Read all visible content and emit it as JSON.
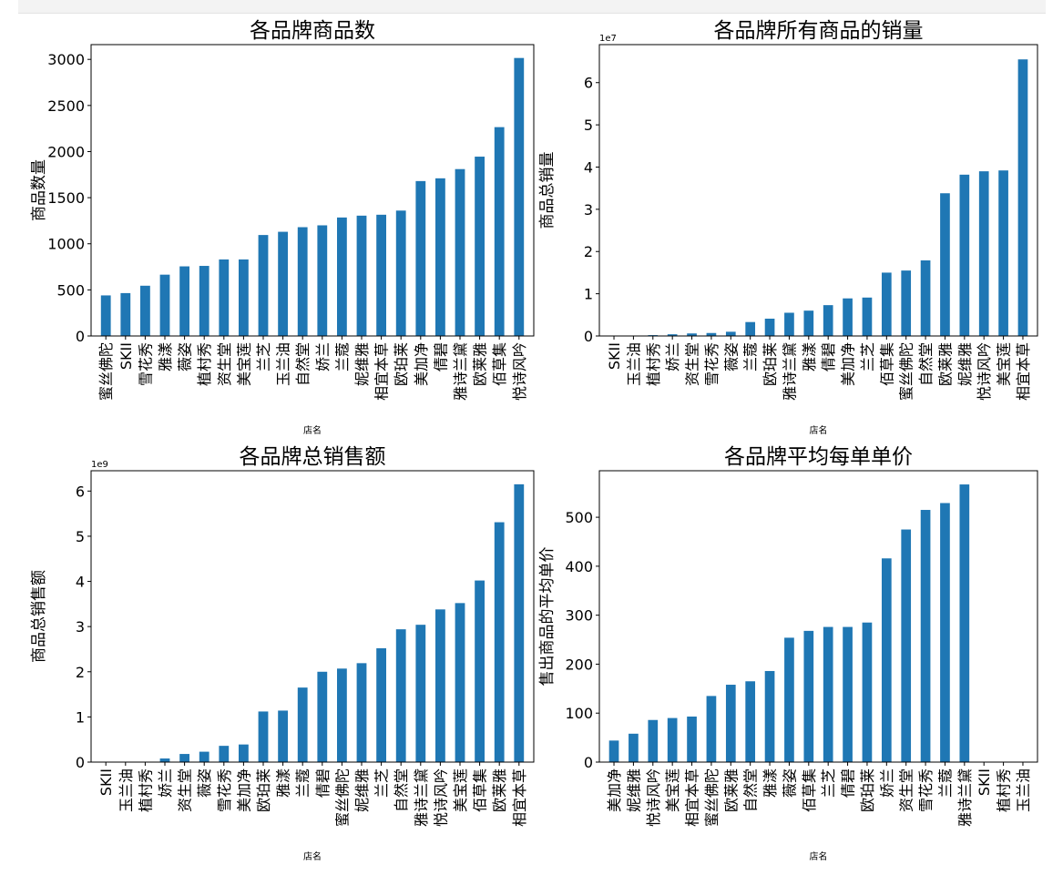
{
  "chart_data": [
    {
      "type": "bar",
      "title": "各品牌商品数",
      "xlabel": "店名",
      "ylabel": "商品数量",
      "exponent": "",
      "color": "#1f77b4",
      "ylim": [
        0,
        3160
      ],
      "yticks": [
        0,
        500,
        1000,
        1500,
        2000,
        2500,
        3000
      ],
      "categories": [
        "蜜丝佛陀",
        "SKII",
        "雪花秀",
        "雅漾",
        "薇姿",
        "植村秀",
        "资生堂",
        "美宝莲",
        "兰芝",
        "玉兰油",
        "自然堂",
        "娇兰",
        "兰蔻",
        "妮维雅",
        "相宜本草",
        "欧珀莱",
        "美加净",
        "倩碧",
        "雅诗兰黛",
        "欧莱雅",
        "佰草集",
        "悦诗风吟"
      ],
      "values": [
        440,
        465,
        545,
        665,
        755,
        760,
        830,
        830,
        1095,
        1130,
        1180,
        1200,
        1285,
        1305,
        1315,
        1360,
        1680,
        1710,
        1810,
        1945,
        2265,
        3015
      ]
    },
    {
      "type": "bar",
      "title": "各品牌所有商品的销量",
      "xlabel": "店名",
      "ylabel": "商品总销量",
      "exponent": "1e7",
      "color": "#1f77b4",
      "ylim": [
        0,
        6.9
      ],
      "yticks": [
        0,
        1,
        2,
        3,
        4,
        5,
        6
      ],
      "categories": [
        "SKII",
        "玉兰油",
        "植村秀",
        "娇兰",
        "资生堂",
        "雪花秀",
        "薇姿",
        "兰蔻",
        "欧珀莱",
        "雅诗兰黛",
        "雅漾",
        "倩碧",
        "美加净",
        "兰芝",
        "佰草集",
        "蜜丝佛陀",
        "自然堂",
        "欧莱雅",
        "妮维雅",
        "悦诗风吟",
        "美宝莲",
        "相宜本草"
      ],
      "values": [
        0.01,
        0.01,
        0.02,
        0.04,
        0.06,
        0.07,
        0.1,
        0.33,
        0.41,
        0.55,
        0.6,
        0.73,
        0.89,
        0.91,
        1.5,
        1.55,
        1.79,
        3.38,
        3.82,
        3.9,
        3.92,
        6.55
      ]
    },
    {
      "type": "bar",
      "title": "各品牌总销售额",
      "xlabel": "店名",
      "ylabel": "商品总销售额",
      "exponent": "1e9",
      "color": "#1f77b4",
      "ylim": [
        0,
        6.45
      ],
      "yticks": [
        0,
        1,
        2,
        3,
        4,
        5,
        6
      ],
      "categories": [
        "SKII",
        "玉兰油",
        "植村秀",
        "娇兰",
        "资生堂",
        "薇姿",
        "雪花秀",
        "美加净",
        "欧珀莱",
        "雅漾",
        "兰蔻",
        "倩碧",
        "蜜丝佛陀",
        "妮维雅",
        "兰芝",
        "自然堂",
        "雅诗兰黛",
        "悦诗风吟",
        "美宝莲",
        "佰草集",
        "欧莱雅",
        "相宜本草"
      ],
      "values": [
        0.0,
        0.0,
        0.01,
        0.08,
        0.18,
        0.23,
        0.36,
        0.39,
        1.12,
        1.14,
        1.65,
        2.0,
        2.07,
        2.19,
        2.52,
        2.94,
        3.04,
        3.38,
        3.52,
        4.02,
        5.31,
        6.15
      ]
    },
    {
      "type": "bar",
      "title": "各品牌平均每单单价",
      "xlabel": "店名",
      "ylabel": "售出商品的平均单价",
      "exponent": "",
      "color": "#1f77b4",
      "ylim": [
        0,
        595
      ],
      "yticks": [
        0,
        100,
        200,
        300,
        400,
        500
      ],
      "categories": [
        "美加净",
        "妮维雅",
        "悦诗风吟",
        "美宝莲",
        "相宜本草",
        "蜜丝佛陀",
        "欧莱雅",
        "自然堂",
        "雅漾",
        "薇姿",
        "佰草集",
        "兰芝",
        "倩碧",
        "欧珀莱",
        "娇兰",
        "资生堂",
        "雪花秀",
        "兰蔻",
        "雅诗兰黛",
        "SKII",
        "植村秀",
        "玉兰油"
      ],
      "values": [
        44,
        58,
        86,
        90,
        93,
        135,
        158,
        165,
        186,
        254,
        268,
        276,
        276,
        285,
        416,
        475,
        515,
        529,
        567,
        0,
        0,
        0
      ]
    }
  ]
}
